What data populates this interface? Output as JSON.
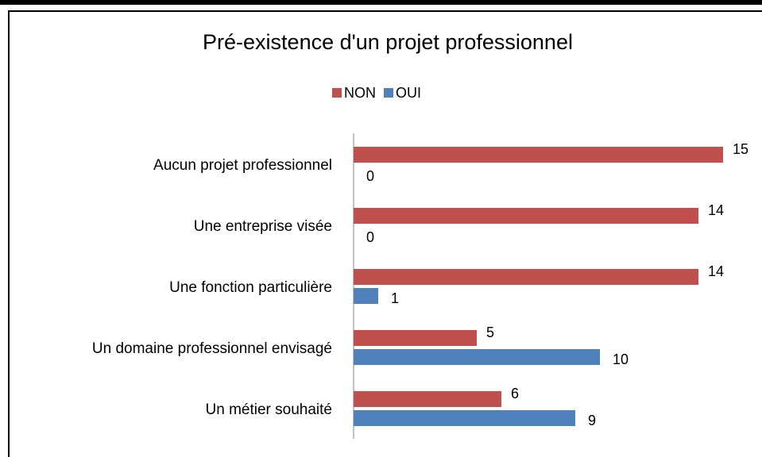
{
  "chart_data": {
    "type": "bar",
    "orientation": "horizontal",
    "title": "Pré-existence d'un projet professionnel",
    "categories": [
      "Aucun projet professionnel",
      "Une entreprise visée",
      "Une fonction particulière",
      "Un domaine professionnel envisagé",
      "Un métier souhaité"
    ],
    "series": [
      {
        "name": "NON",
        "color": "#c0504d",
        "values": [
          15,
          14,
          14,
          5,
          6
        ]
      },
      {
        "name": "OUI",
        "color": "#4f81bd",
        "values": [
          0,
          0,
          1,
          10,
          9
        ]
      }
    ],
    "xlim": [
      0,
      15
    ],
    "legend": "top",
    "grid": false
  }
}
